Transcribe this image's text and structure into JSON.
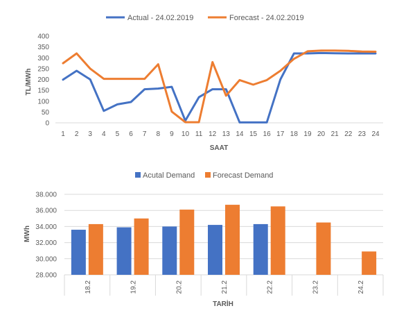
{
  "chart_data": [
    {
      "type": "line",
      "title": "",
      "xlabel": "SAAT",
      "ylabel": "TL/MWh",
      "ylim": [
        0,
        400
      ],
      "yticks": [
        "0",
        "50",
        "100",
        "150",
        "200",
        "250",
        "300",
        "350",
        "400"
      ],
      "x": [
        "1",
        "2",
        "3",
        "4",
        "5",
        "6",
        "7",
        "8",
        "9",
        "10",
        "11",
        "12",
        "13",
        "14",
        "15",
        "16",
        "17",
        "18",
        "19",
        "20",
        "21",
        "22",
        "23",
        "24"
      ],
      "grid": false,
      "legend": "top",
      "series": [
        {
          "name": "Actual - 24.02.2019",
          "color": "#4472C4",
          "values": [
            199,
            240,
            200,
            55,
            85,
            96,
            155,
            158,
            166,
            10,
            118,
            155,
            155,
            2,
            2,
            2,
            200,
            320,
            320,
            322,
            321,
            320,
            320,
            320
          ]
        },
        {
          "name": "Forecast - 24.02.2019",
          "color": "#ED7D31",
          "values": [
            275,
            320,
            250,
            203,
            203,
            203,
            203,
            270,
            52,
            3,
            3,
            280,
            125,
            197,
            176,
            197,
            240,
            295,
            330,
            333,
            333,
            332,
            329,
            328
          ]
        }
      ]
    },
    {
      "type": "bar",
      "title": "",
      "xlabel": "TARİH",
      "ylabel": "MWh",
      "ylim": [
        28000,
        38000
      ],
      "yticks": [
        "28.000",
        "30.000",
        "32.000",
        "34.000",
        "36.000",
        "38.000"
      ],
      "categories": [
        "18.2",
        "19.2",
        "20.2",
        "21.2",
        "22.2",
        "23.2",
        "24.2"
      ],
      "grid": true,
      "legend": "top",
      "series": [
        {
          "name": "Acutal Demand",
          "color": "#4472C4",
          "values": [
            33600,
            33900,
            34000,
            34200,
            34300,
            null,
            null
          ]
        },
        {
          "name": "Forecast Demand",
          "color": "#ED7D31",
          "values": [
            34300,
            35000,
            36100,
            36700,
            36500,
            34500,
            30900
          ]
        }
      ]
    }
  ]
}
